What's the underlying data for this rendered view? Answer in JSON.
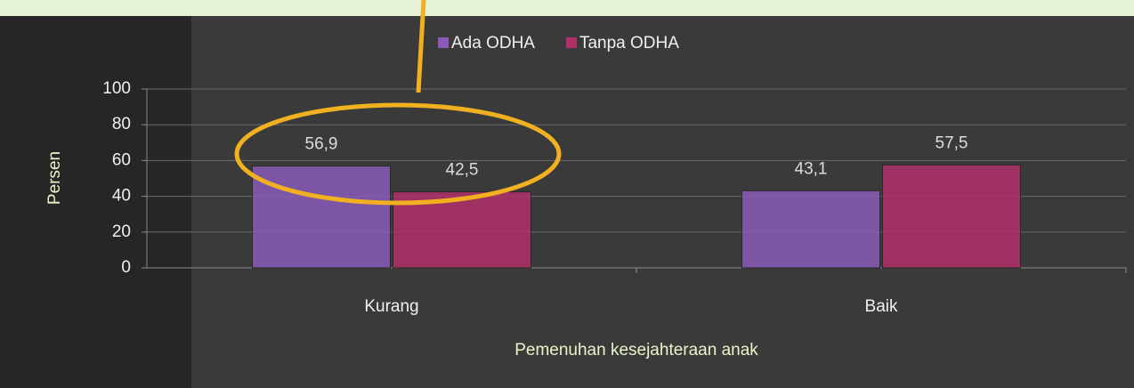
{
  "chart_data": {
    "type": "bar",
    "categories": [
      "Kurang",
      "Baik"
    ],
    "series": [
      {
        "name": "Ada ODHA",
        "color": "#8a5ab8",
        "values": [
          56.9,
          43.1
        ],
        "value_labels": [
          "56,9",
          "43,1"
        ]
      },
      {
        "name": "Tanpa ODHA",
        "color": "#b0306a",
        "values": [
          42.5,
          57.5
        ],
        "value_labels": [
          "42,5",
          "57,5"
        ]
      }
    ],
    "ylim": [
      0,
      100
    ],
    "yticks": [
      0,
      20,
      40,
      60,
      80,
      100
    ],
    "grid": true,
    "y_label": "Persen",
    "x_label": "Pemenuhan kesejahteraan anak",
    "legend": "top"
  }
}
